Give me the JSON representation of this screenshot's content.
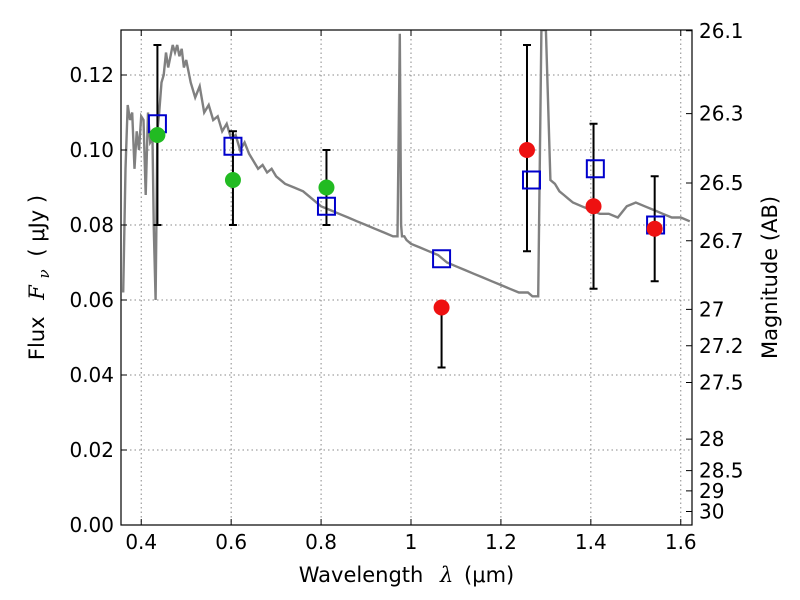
{
  "chart_data": {
    "type": "scatter",
    "xlabel": {
      "text": "Wavelength",
      "symbol": "λ",
      "unit": "(μm)"
    },
    "ylabel": {
      "text": "Flux",
      "symbol": "F",
      "subscript": "ν",
      "unit": "( μJy )"
    },
    "ylabel_right": "Magnitude (AB)",
    "xlim": [
      0.355,
      1.625
    ],
    "ylim": [
      0.0,
      0.132
    ],
    "x_ticks": [
      0.4,
      0.6,
      0.8,
      1.0,
      1.2,
      1.4,
      1.6
    ],
    "x_tick_labels": [
      "0.4",
      "0.6",
      "0.8",
      "1",
      "1.2",
      "1.4",
      "1.6"
    ],
    "y_ticks": [
      0.0,
      0.02,
      0.04,
      0.06,
      0.08,
      0.1,
      0.12
    ],
    "y_tick_labels": [
      "0.00",
      "0.02",
      "0.04",
      "0.06",
      "0.08",
      "0.10",
      "0.12"
    ],
    "right_ticks": [
      {
        "flux": 0.1318,
        "label": "26.1"
      },
      {
        "flux": 0.1097,
        "label": "26.3"
      },
      {
        "flux": 0.0912,
        "label": "26.5"
      },
      {
        "flux": 0.0758,
        "label": "26.7"
      },
      {
        "flux": 0.0575,
        "label": "27"
      },
      {
        "flux": 0.0478,
        "label": "27.2"
      },
      {
        "flux": 0.038,
        "label": "27.5"
      },
      {
        "flux": 0.0229,
        "label": "28"
      },
      {
        "flux": 0.0145,
        "label": "28.5"
      },
      {
        "flux": 0.0091,
        "label": "29"
      },
      {
        "flux": 0.0036,
        "label": "30"
      }
    ],
    "grid": true,
    "colors": {
      "model": "#808080",
      "model_photometry": "#0000cc",
      "optical_points": "#22bb22",
      "nir_points": "#ee1111",
      "error_bars": "#000000",
      "grid": "#888888"
    },
    "series": [
      {
        "type": "line",
        "x": [
          0.36,
          0.365,
          0.37,
          0.375,
          0.38,
          0.385,
          0.39,
          0.395,
          0.4,
          0.405,
          0.41,
          0.415,
          0.42,
          0.425,
          0.428,
          0.432,
          0.436,
          0.44,
          0.445,
          0.45,
          0.455,
          0.46,
          0.465,
          0.47,
          0.475,
          0.48,
          0.485,
          0.49,
          0.495,
          0.5,
          0.51,
          0.52,
          0.53,
          0.54,
          0.55,
          0.56,
          0.57,
          0.58,
          0.59,
          0.6,
          0.61,
          0.62,
          0.63,
          0.64,
          0.65,
          0.66,
          0.67,
          0.68,
          0.69,
          0.7,
          0.72,
          0.74,
          0.76,
          0.78,
          0.8,
          0.82,
          0.84,
          0.86,
          0.88,
          0.9,
          0.92,
          0.94,
          0.96,
          0.97,
          0.975,
          0.978,
          0.98,
          0.985,
          0.99,
          1.0,
          1.02,
          1.04,
          1.06,
          1.08,
          1.1,
          1.12,
          1.14,
          1.16,
          1.18,
          1.2,
          1.22,
          1.24,
          1.26,
          1.27,
          1.28,
          1.283,
          1.29,
          1.3,
          1.31,
          1.32,
          1.33,
          1.34,
          1.35,
          1.36,
          1.38,
          1.4,
          1.42,
          1.44,
          1.46,
          1.48,
          1.5,
          1.52,
          1.54,
          1.56,
          1.58,
          1.6,
          1.62
        ],
        "y": [
          0.062,
          0.095,
          0.112,
          0.108,
          0.11,
          0.095,
          0.105,
          0.1,
          0.109,
          0.108,
          0.088,
          0.11,
          0.102,
          0.103,
          0.079,
          0.06,
          0.105,
          0.11,
          0.118,
          0.12,
          0.126,
          0.122,
          0.125,
          0.128,
          0.126,
          0.128,
          0.125,
          0.127,
          0.122,
          0.124,
          0.118,
          0.114,
          0.117,
          0.11,
          0.112,
          0.108,
          0.109,
          0.105,
          0.107,
          0.103,
          0.104,
          0.1,
          0.102,
          0.099,
          0.097,
          0.095,
          0.096,
          0.094,
          0.095,
          0.093,
          0.091,
          0.09,
          0.089,
          0.087,
          0.085,
          0.084,
          0.083,
          0.082,
          0.081,
          0.08,
          0.079,
          0.078,
          0.077,
          0.077,
          0.131,
          0.08,
          0.077,
          0.077,
          0.076,
          0.075,
          0.074,
          0.073,
          0.072,
          0.07,
          0.069,
          0.068,
          0.067,
          0.066,
          0.065,
          0.064,
          0.063,
          0.062,
          0.062,
          0.061,
          0.061,
          0.061,
          0.132,
          0.132,
          0.092,
          0.091,
          0.089,
          0.088,
          0.087,
          0.086,
          0.085,
          0.084,
          0.083,
          0.083,
          0.082,
          0.085,
          0.086,
          0.085,
          0.084,
          0.083,
          0.082,
          0.082,
          0.081
        ]
      },
      {
        "type": "scatter",
        "marker": "open-square",
        "x": [
          0.436,
          0.604,
          0.812,
          1.068,
          1.268,
          1.41,
          1.544
        ],
        "y": [
          0.107,
          0.101,
          0.085,
          0.071,
          0.092,
          0.095,
          0.08
        ]
      },
      {
        "type": "scatter",
        "marker": "filled-circle",
        "x": [
          0.436,
          0.604,
          0.812
        ],
        "y": [
          0.104,
          0.092,
          0.09
        ],
        "yerr_low": [
          0.08,
          0.08,
          0.08
        ],
        "yerr_high": [
          0.128,
          0.105,
          0.1
        ]
      },
      {
        "type": "scatter",
        "marker": "filled-circle",
        "x": [
          1.068,
          1.258,
          1.406,
          1.542
        ],
        "y": [
          0.058,
          0.1,
          0.085,
          0.079
        ],
        "yerr_low": [
          0.042,
          0.073,
          0.063,
          0.065
        ],
        "yerr_high": [
          0.058,
          0.128,
          0.107,
          0.093
        ]
      }
    ]
  }
}
